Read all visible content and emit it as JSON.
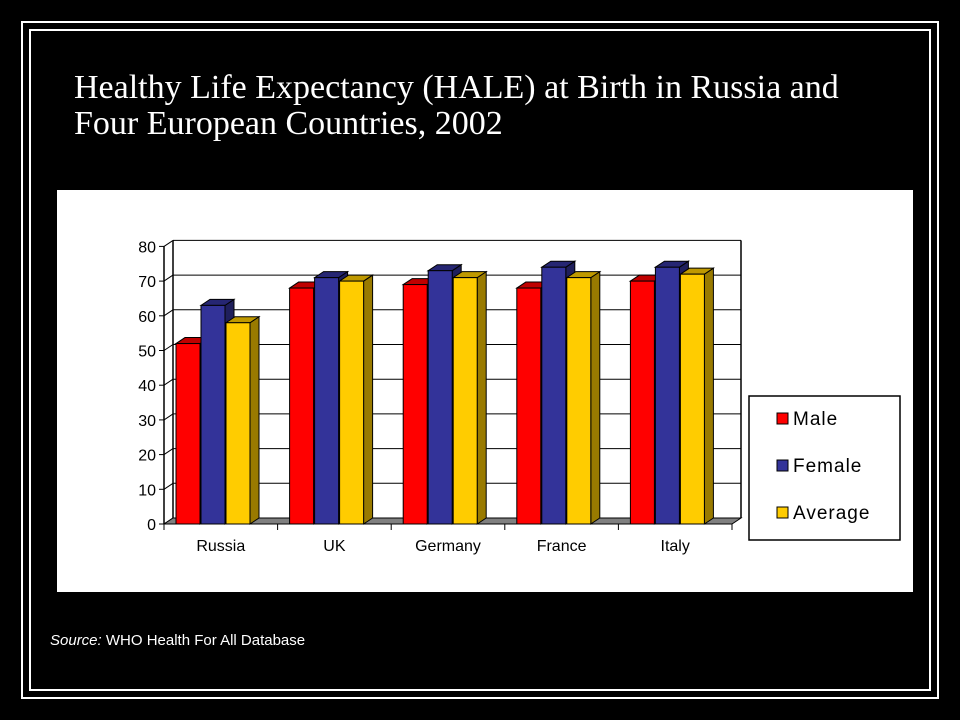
{
  "title": "Healthy Life Expectancy (HALE) at Birth in Russia and Four European Countries, 2002",
  "source": {
    "label": "Source:",
    "text": " WHO Health For All Database"
  },
  "colors": {
    "Male": "#ff0000",
    "Female": "#333399",
    "Average": "#ffcc00",
    "floor": "#808080"
  },
  "chart_data": {
    "type": "bar",
    "title": "",
    "xlabel": "",
    "ylabel": "",
    "categories": [
      "Russia",
      "UK",
      "Germany",
      "France",
      "Italy"
    ],
    "series": [
      {
        "name": "Male",
        "values": [
          52,
          68,
          69,
          68,
          70
        ]
      },
      {
        "name": "Female",
        "values": [
          63,
          71,
          73,
          74,
          74
        ]
      },
      {
        "name": "Average",
        "values": [
          58,
          70,
          71,
          71,
          72
        ]
      }
    ],
    "ylim": [
      0,
      80
    ],
    "yticks": [
      "0",
      "10",
      "20",
      "30",
      "40",
      "50",
      "60",
      "70",
      "80"
    ],
    "grid": true,
    "legend_position": "right"
  }
}
